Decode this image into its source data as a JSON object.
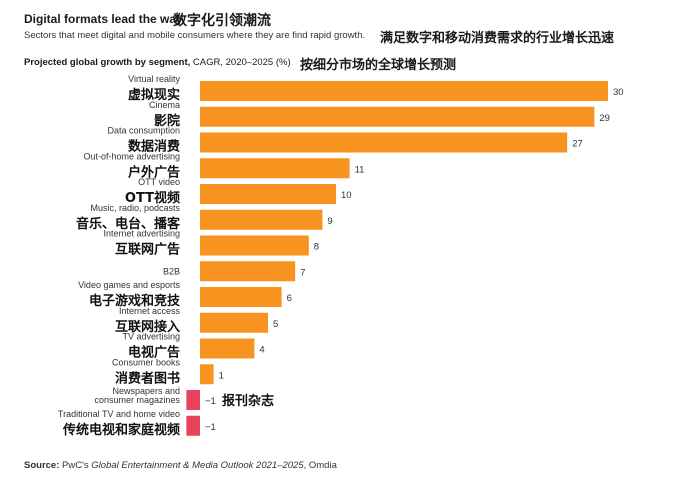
{
  "header": {
    "title_en": "Digital formats lead the way",
    "title_zh": "数字化引领潮流",
    "subtitle_en": "Sectors that meet digital and mobile consumers where they are find rapid growth.",
    "subtitle_zh": "满足数字和移动消费需求的行业增长迅速",
    "chart_title_bold": "Projected global growth by segment,",
    "chart_title_rest": " CAGR, 2020–2025 (%)",
    "chart_title_zh": "按细分市场的全球增长预测"
  },
  "source": {
    "label": "Source:",
    "pre": " PwC's ",
    "italic": "Global Entertainment & Media Outlook 2021–2025",
    "post": ", Omdia"
  },
  "chart_data": {
    "type": "bar",
    "orientation": "horizontal",
    "categories": [
      {
        "en": [
          "Virtual reality"
        ],
        "zh": "虚拟现实"
      },
      {
        "en": [
          "Cinema"
        ],
        "zh": "影院"
      },
      {
        "en": [
          "Data consumption"
        ],
        "zh": "数据消费"
      },
      {
        "en": [
          "Out-of-home advertising"
        ],
        "zh": "户外广告"
      },
      {
        "en": [
          "OTT video"
        ],
        "zh": "OTT视频"
      },
      {
        "en": [
          "Music, radio, podcasts"
        ],
        "zh": "音乐、电台、播客"
      },
      {
        "en": [
          "Internet advertising"
        ],
        "zh": "互联网广告"
      },
      {
        "en": [
          "B2B"
        ],
        "zh": ""
      },
      {
        "en": [
          "Video games and esports"
        ],
        "zh": "电子游戏和竞技"
      },
      {
        "en": [
          "Internet access"
        ],
        "zh": "互联网接入"
      },
      {
        "en": [
          "TV advertising"
        ],
        "zh": "电视广告"
      },
      {
        "en": [
          "Consumer books"
        ],
        "zh": "消费者图书"
      },
      {
        "en": [
          "Newspapers and",
          "consumer magazines"
        ],
        "zh": ""
      },
      {
        "en": [
          "Traditional TV and home video"
        ],
        "zh": "传统电视和家庭视频"
      }
    ],
    "values": [
      30,
      29,
      27,
      11,
      10,
      9,
      8,
      7,
      6,
      5,
      4,
      1,
      -1,
      -1
    ],
    "value_labels": [
      "30",
      "29",
      "27",
      "11",
      "10",
      "9",
      "8",
      "7",
      "6",
      "5",
      "4",
      "1",
      "−1",
      "−1"
    ],
    "annotation_zh": "报刊杂志",
    "positive_color": "#F7931E",
    "negative_color": "#E8435A",
    "xlim": [
      -1,
      30
    ],
    "grid": false,
    "legend": "none"
  }
}
